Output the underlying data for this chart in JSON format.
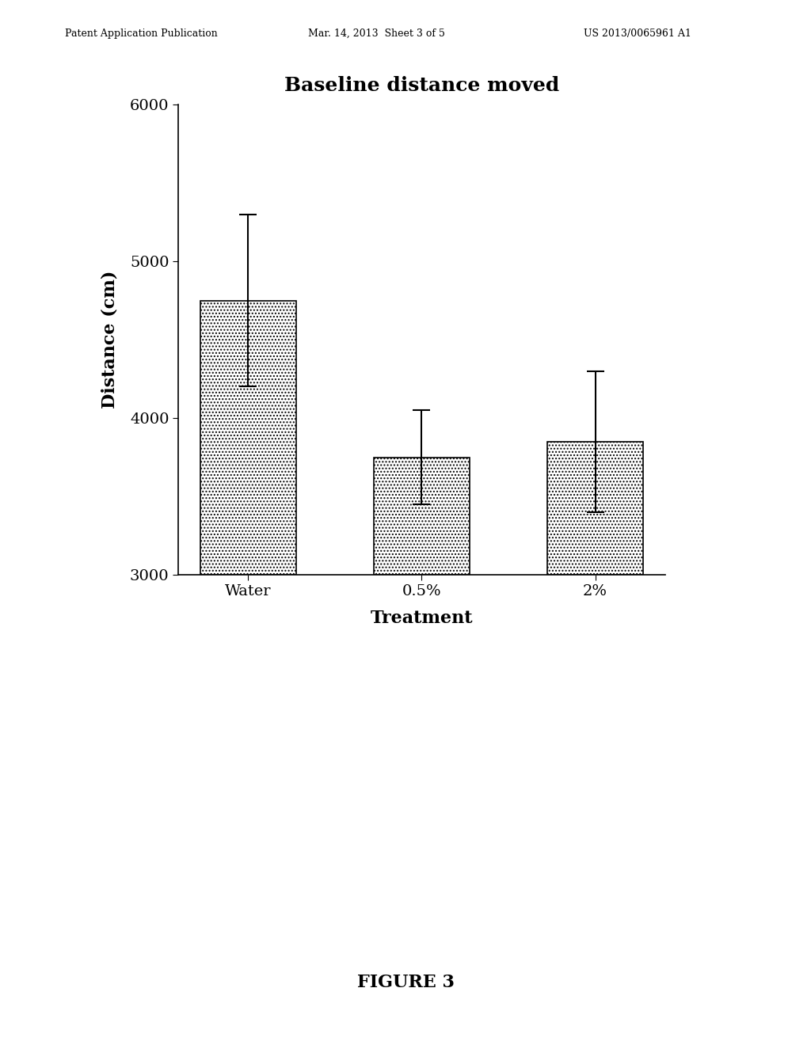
{
  "title": "Baseline distance moved",
  "xlabel": "Treatment",
  "ylabel": "Distance (cm)",
  "categories": [
    "Water",
    "0.5%",
    "2%"
  ],
  "values": [
    4750,
    3750,
    3850
  ],
  "errors": [
    550,
    300,
    450
  ],
  "ylim": [
    3000,
    6000
  ],
  "yticks": [
    3000,
    4000,
    5000,
    6000
  ],
  "bar_color": "#d0d0d0",
  "bar_edgecolor": "#000000",
  "background_color": "#ffffff",
  "title_fontsize": 18,
  "axis_label_fontsize": 16,
  "tick_fontsize": 14,
  "header_left": "Patent Application Publication",
  "header_mid": "Mar. 14, 2013  Sheet 3 of 5",
  "header_right": "US 2013/0065961 A1",
  "footer": "FIGURE 3"
}
